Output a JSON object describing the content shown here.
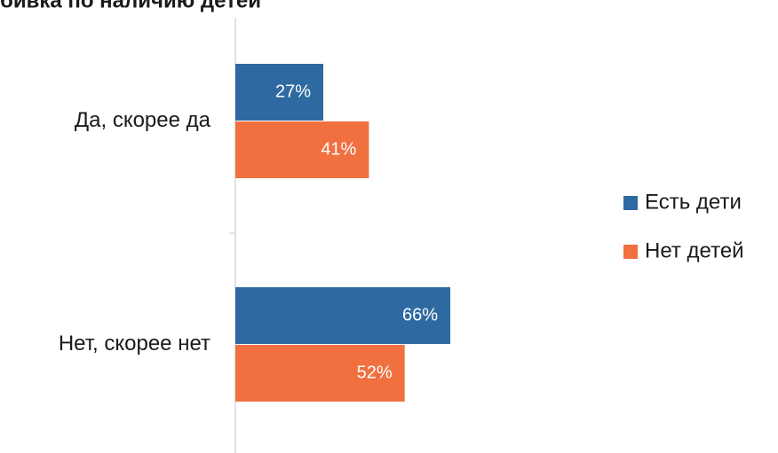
{
  "chart_data": {
    "type": "bar",
    "orientation": "horizontal",
    "title": "бивка по наличию детей",
    "categories": [
      "Да, скорее да",
      "Нет, скорее нет"
    ],
    "series": [
      {
        "name": "Есть дети",
        "color": "#2e6aa1",
        "values": [
          27,
          66
        ],
        "value_labels": [
          "27%",
          "66%"
        ]
      },
      {
        "name": "Нет детей",
        "color": "#f07040",
        "values": [
          41,
          52
        ],
        "value_labels": [
          "41%",
          "52%"
        ]
      }
    ],
    "legend": "right"
  }
}
